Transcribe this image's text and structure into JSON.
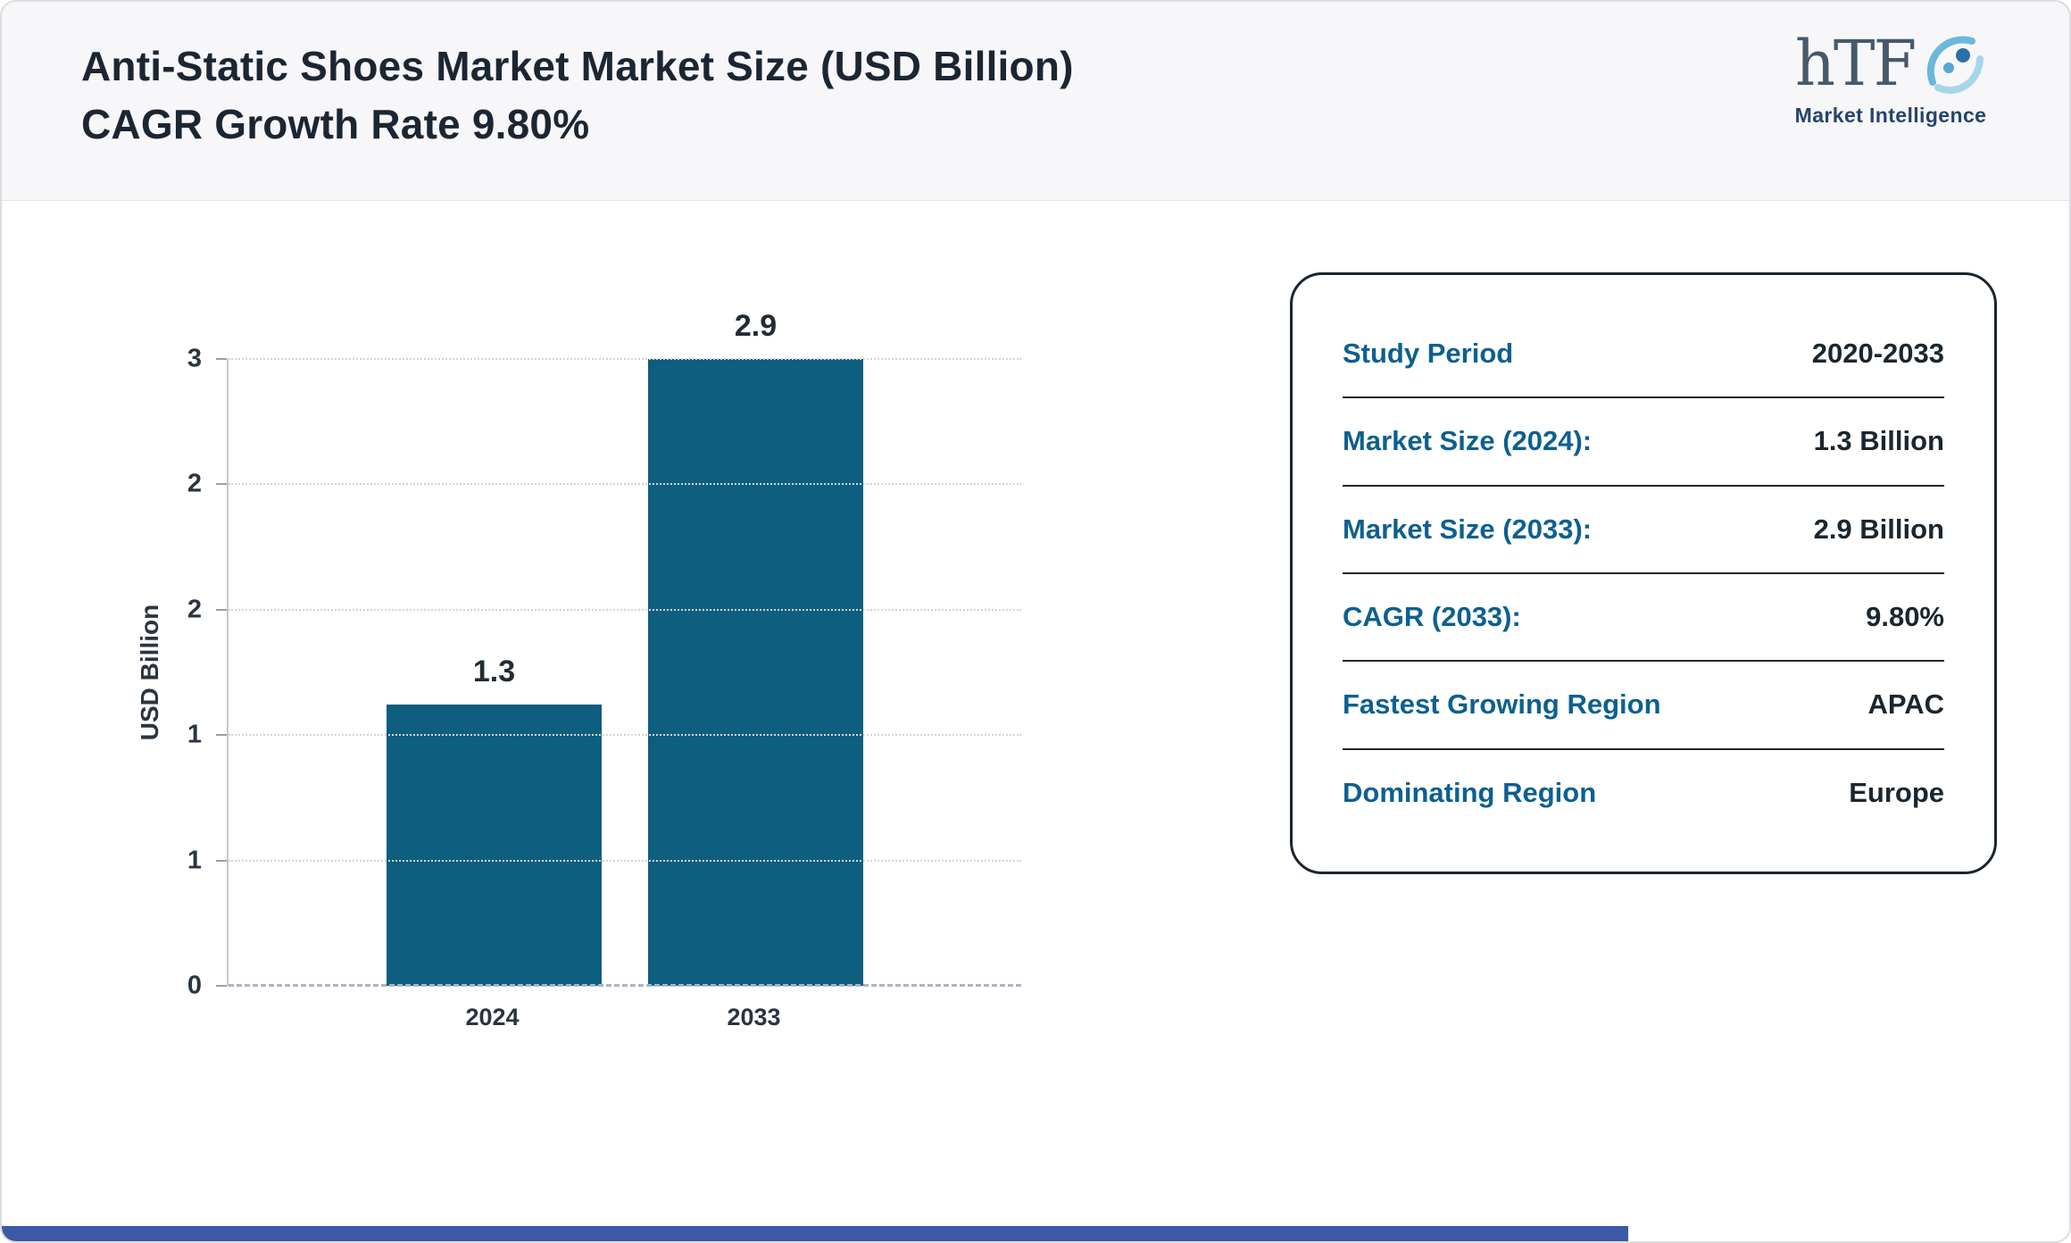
{
  "header": {
    "title": "Anti-Static Shoes Market Market Size (USD Billion) CAGR Growth Rate 9.80%"
  },
  "logo": {
    "brand": "hTF",
    "tagline": "Market Intelligence"
  },
  "chart_data": {
    "type": "bar",
    "title": "Anti-Static Shoes Market Market Size (USD Billion) CAGR Growth Rate 9.80%",
    "categories": [
      "2024",
      "2033"
    ],
    "values": [
      1.3,
      2.9
    ],
    "bar_value_labels": [
      "1.3",
      "2.9"
    ],
    "xlabel": "",
    "ylabel": "USD Billion",
    "ylim": [
      0,
      2.9
    ],
    "yticks": [
      {
        "value": 0,
        "label": "0"
      },
      {
        "value": 0.58,
        "label": "1"
      },
      {
        "value": 1.16,
        "label": "1"
      },
      {
        "value": 1.74,
        "label": "2"
      },
      {
        "value": 2.32,
        "label": "2"
      },
      {
        "value": 2.9,
        "label": "3"
      }
    ],
    "grid": "horizontal-dotted",
    "legend": "none",
    "bar_color": "#0e5e80"
  },
  "info_card": {
    "rows": [
      {
        "label": "Study Period",
        "value": "2020-2033"
      },
      {
        "label": "Market Size (2024):",
        "value": "1.3 Billion"
      },
      {
        "label": "Market Size (2033):",
        "value": "2.9 Billion"
      },
      {
        "label": "CAGR (2033):",
        "value": "9.80%"
      },
      {
        "label": "Fastest Growing Region",
        "value": "APAC"
      },
      {
        "label": "Dominating Region",
        "value": "Europe"
      }
    ]
  },
  "colors": {
    "bar": "#0e5e80",
    "card_label": "#0d608f",
    "text_dark": "#1a2630",
    "footer_bar": "#3c59a6",
    "header_bg": "#f7f7f9"
  }
}
